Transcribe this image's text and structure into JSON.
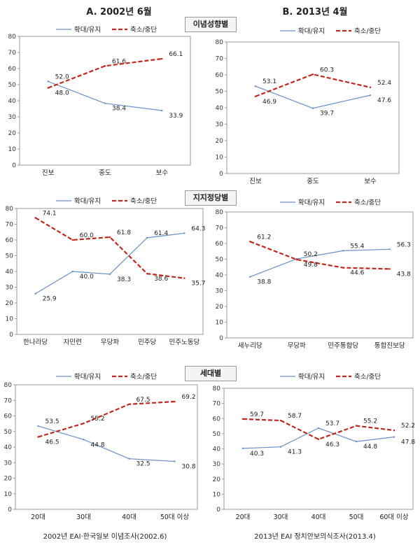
{
  "header": {
    "col_a": "A. 2002년 6월",
    "col_b": "B. 2013년 4월"
  },
  "sections": [
    "이념성향별",
    "지지정당별",
    "세대별"
  ],
  "footers": [
    "2002년 EAI·한국일보 이념조사(2002.6)",
    "2013년 EAI 정치안보의식조사(2013.4)"
  ],
  "legend": {
    "expand": "확대/유지",
    "reduce": "축소/중단"
  },
  "colors": {
    "expand": "#6a8fc4",
    "reduce": "#c0281e"
  },
  "chart_data": [
    {
      "type": "line",
      "categories": [
        "진보",
        "중도",
        "보수"
      ],
      "ylim": [
        0,
        80
      ],
      "series": [
        {
          "name": "확대/유지",
          "values": [
            52.0,
            38.4,
            33.9
          ]
        },
        {
          "name": "축소/중단",
          "values": [
            48.0,
            61.6,
            66.1
          ]
        }
      ]
    },
    {
      "type": "line",
      "categories": [
        "진보",
        "중도",
        "보수"
      ],
      "ylim": [
        0,
        80
      ],
      "series": [
        {
          "name": "확대/유지",
          "values": [
            53.1,
            39.7,
            47.6
          ]
        },
        {
          "name": "축소/중단",
          "values": [
            46.9,
            60.3,
            52.4
          ]
        }
      ]
    },
    {
      "type": "line",
      "categories": [
        "한나라당",
        "자민련",
        "무당파",
        "민주당",
        "민주노동당"
      ],
      "ylim": [
        0,
        80
      ],
      "series": [
        {
          "name": "확대/유지",
          "values": [
            25.9,
            40.0,
            38.3,
            61.4,
            64.3
          ]
        },
        {
          "name": "축소/중단",
          "values": [
            74.1,
            60.0,
            61.8,
            38.6,
            35.7
          ]
        }
      ]
    },
    {
      "type": "line",
      "categories": [
        "새누리당",
        "무당파",
        "민주통합당",
        "통합진보당"
      ],
      "ylim": [
        0,
        80
      ],
      "series": [
        {
          "name": "확대/유지",
          "values": [
            38.8,
            50.2,
            55.4,
            56.3
          ]
        },
        {
          "name": "축소/중단",
          "values": [
            61.2,
            49.8,
            44.6,
            43.8
          ]
        }
      ]
    },
    {
      "type": "line",
      "categories": [
        "20대",
        "30대",
        "40대",
        "50대 이상"
      ],
      "ylim": [
        0,
        80
      ],
      "series": [
        {
          "name": "확대/유지",
          "values": [
            53.5,
            44.8,
            32.5,
            30.8
          ]
        },
        {
          "name": "축소/중단",
          "values": [
            46.5,
            55.2,
            67.5,
            69.2
          ]
        }
      ]
    },
    {
      "type": "line",
      "categories": [
        "20대",
        "30대",
        "40대",
        "50대",
        "60대 이상"
      ],
      "ylim": [
        0,
        80
      ],
      "series": [
        {
          "name": "확대/유지",
          "values": [
            40.3,
            41.3,
            53.7,
            44.8,
            47.8
          ]
        },
        {
          "name": "축소/중단",
          "values": [
            59.7,
            58.7,
            46.3,
            55.2,
            52.2
          ]
        }
      ]
    }
  ]
}
